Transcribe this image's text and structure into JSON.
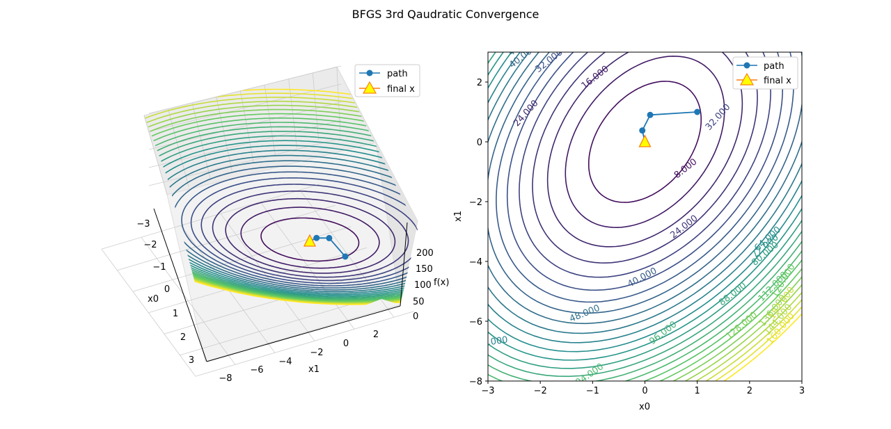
{
  "figure": {
    "title": "BFGS 3rd Qaudratic Convergence"
  },
  "colors": {
    "path": "#1f77b4",
    "marker_face": "#ffff00",
    "marker_edge": "#ff7f0e",
    "axes": "#000000",
    "pane": "#f2f2f2",
    "grid": "#cccccc"
  },
  "chart_data": [
    {
      "type": "surface3d-contour",
      "xlabel": "x0",
      "ylabel": "x1",
      "zlabel": "f(x)",
      "xlim": [
        -3,
        3
      ],
      "ylim": [
        -8,
        3
      ],
      "zlim": [
        0,
        220
      ],
      "xticks": [
        "−3",
        "−2",
        "−1",
        "0",
        "1",
        "2",
        "3"
      ],
      "yticks": [
        "−8",
        "−6",
        "−4",
        "−2",
        "0",
        "2"
      ],
      "zticks": [
        "0",
        "50",
        "100",
        "150",
        "200"
      ],
      "grid": true,
      "legend": {
        "position": "top-right",
        "entries": [
          "path",
          "final x"
        ]
      },
      "series": [
        {
          "name": "path",
          "x": [
            1.0,
            0.1,
            -0.05
          ],
          "y": [
            1.0,
            0.9,
            0.38
          ]
        },
        {
          "name": "final x",
          "x": [
            0.0
          ],
          "y": [
            0.0
          ]
        }
      ]
    },
    {
      "type": "contour",
      "xlabel": "x0",
      "ylabel": "x1",
      "xlim": [
        -3,
        3
      ],
      "ylim": [
        -8,
        3
      ],
      "xticks": [
        "−3",
        "−2",
        "−1",
        "0",
        "1",
        "2",
        "3"
      ],
      "yticks": [
        "−8",
        "−6",
        "−4",
        "−2",
        "0",
        "2"
      ],
      "contour_levels": [
        8,
        16,
        24,
        32,
        40,
        48,
        56,
        64,
        72,
        80,
        88,
        96,
        104,
        112,
        120,
        128,
        136,
        144,
        152,
        160,
        168,
        176,
        184,
        192,
        200
      ],
      "contour_labels": [
        "8.000",
        "16.000",
        "24.000",
        "24.000",
        "32.000",
        "32.000",
        "40.000",
        "40.000",
        "48.000",
        "48.000",
        "56.000",
        "64.000",
        "72.000",
        "80.000",
        "88.000",
        "96.000",
        "104.000",
        "112.000",
        "120.000",
        "128.000",
        "136.000",
        "144.000",
        "152.000",
        "160.000"
      ],
      "legend": {
        "position": "top-right",
        "entries": [
          "path",
          "final x"
        ]
      },
      "series": [
        {
          "name": "path",
          "x": [
            1.0,
            0.1,
            -0.05
          ],
          "y": [
            1.0,
            0.9,
            0.38
          ]
        },
        {
          "name": "final x",
          "x": [
            0.0
          ],
          "y": [
            0.0
          ]
        }
      ]
    }
  ]
}
